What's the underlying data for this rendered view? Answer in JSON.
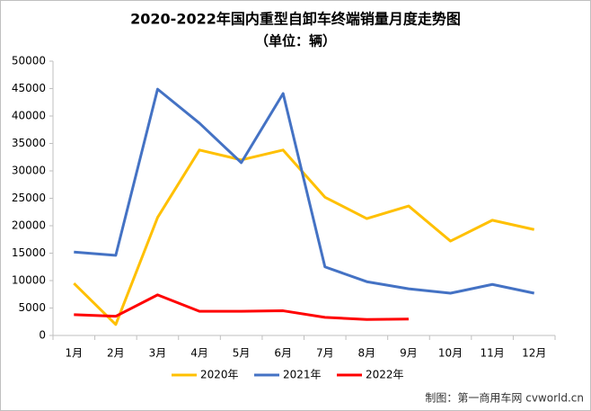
{
  "chart_data": {
    "type": "line",
    "title": "2020-2022年国内重型自卸车终端销量月度走势图",
    "subtitle": "（单位：辆）",
    "source": "制图：第一商用车网 cvworld.cn",
    "categories": [
      "1月",
      "2月",
      "3月",
      "4月",
      "5月",
      "6月",
      "7月",
      "8月",
      "9月",
      "10月",
      "11月",
      "12月"
    ],
    "series": [
      {
        "name": "2020年",
        "color": "#FFC000",
        "values": [
          9500,
          2000,
          21500,
          33800,
          32000,
          33800,
          25200,
          21300,
          23600,
          17200,
          21000,
          19300
        ]
      },
      {
        "name": "2021年",
        "color": "#4472C4",
        "values": [
          15200,
          14600,
          44900,
          38700,
          31500,
          44100,
          12500,
          9800,
          8500,
          7700,
          9300,
          7700
        ]
      },
      {
        "name": "2022年",
        "color": "#FF0000",
        "values": [
          3800,
          3500,
          7400,
          4400,
          4400,
          4500,
          3300,
          2900,
          3000,
          null,
          null,
          null
        ]
      }
    ],
    "ylim": [
      0,
      50000
    ],
    "yticks": [
      0,
      5000,
      10000,
      15000,
      20000,
      25000,
      30000,
      35000,
      40000,
      45000,
      50000
    ],
    "grid": false,
    "legend": "bottom"
  }
}
